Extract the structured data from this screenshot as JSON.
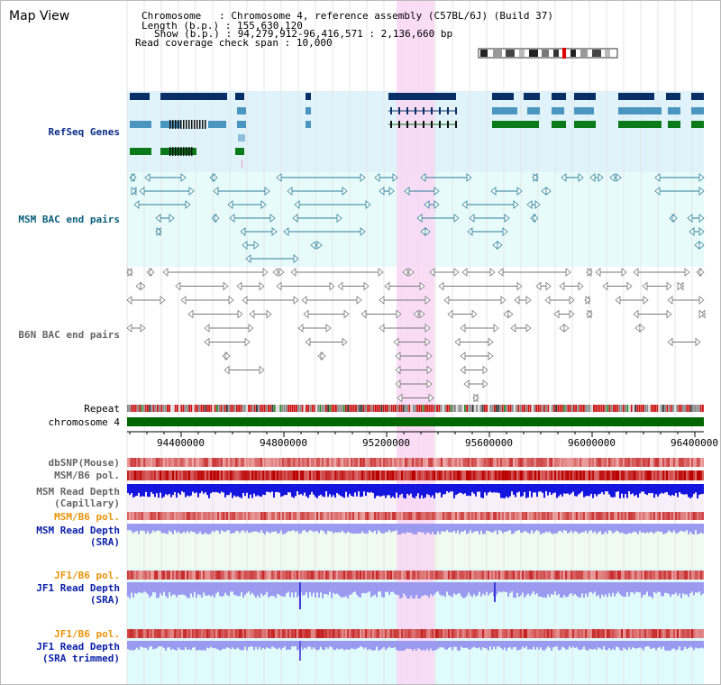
{
  "header": {
    "title": "Map View",
    "chromosome_label": "Chromosome",
    "chromosome_value": "Chromosome 4, reference assembly (C57BL/6J) (Build 37)",
    "length_label": "Length (b.p.)",
    "length_value": "155,630,120",
    "show_label": "Show (b.p.)",
    "show_value": "94,279,912-96,416,571 : 2,136,660 bp",
    "span_label": "Read coverage check span",
    "span_value": "10,000"
  },
  "tracks": {
    "refseq": "RefSeq Genes",
    "msm_bac": "MSM BAC end pairs",
    "b6n_bac": "B6N BAC end pairs",
    "repeat": "Repeat",
    "chromosome": "chromosome 4",
    "dbsnp": "dbSNP(Mouse)",
    "msm_pol": "MSM/B6 pol.",
    "msm_depth_cap_1": "MSM Read Depth",
    "msm_depth_cap_2": "(Capillary)",
    "msm_pol_sra": "MSM/B6 pol.",
    "msm_depth_sra_1": "MSM Read Depth",
    "msm_depth_sra_2": "(SRA)",
    "jf1_pol": "JF1/B6 pol.",
    "jf1_depth_1": "JF1 Read Depth",
    "jf1_depth_2": "(SRA)",
    "jf1_pol_trim": "JF1/B6 pol.",
    "jf1_trim_1": "JF1 Read Depth",
    "jf1_trim_2": "(SRA trimmed)"
  },
  "axis": {
    "ticks": [
      "94400000",
      "94800000",
      "95200000",
      "95600000",
      "96000000",
      "96400000"
    ]
  },
  "colors": {
    "refseq_bg": "#e0f3fb",
    "bac_bg": "#e8fbfb",
    "highlight": "#f9d6f3",
    "chromosome": "#006600",
    "gene_dark": "#0a2f66",
    "gene_mid": "#4a96c0",
    "gene_green": "#0a7a1a",
    "bac_teal": "#2b7f98",
    "bac_gray": "#777777",
    "depth_blue": "#1515e0",
    "depth_light": "#9a9af0"
  }
}
